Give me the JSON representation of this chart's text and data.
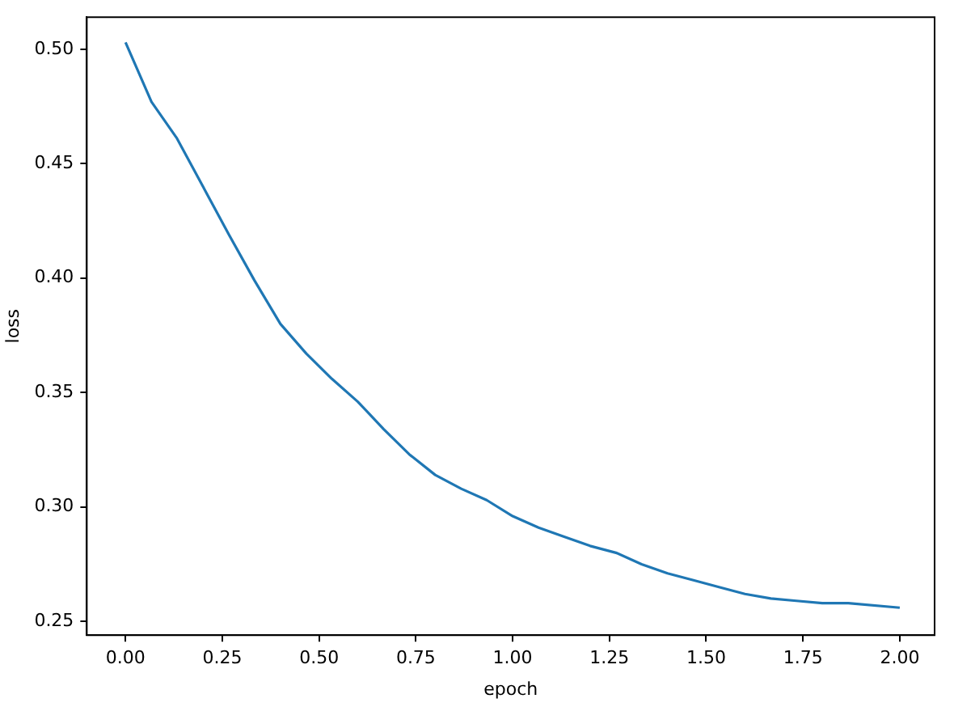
{
  "chart_data": {
    "type": "line",
    "xlabel": "epoch",
    "ylabel": "loss",
    "x": [
      0,
      0.067,
      0.133,
      0.2,
      0.267,
      0.333,
      0.4,
      0.467,
      0.533,
      0.6,
      0.667,
      0.733,
      0.8,
      0.867,
      0.933,
      1.0,
      1.067,
      1.133,
      1.2,
      1.267,
      1.333,
      1.4,
      1.467,
      1.533,
      1.6,
      1.667,
      1.733,
      1.8,
      1.867,
      2.0
    ],
    "series": [
      {
        "color": "#1f77b4",
        "values": [
          0.503,
          0.477,
          0.461,
          0.44,
          0.419,
          0.399,
          0.38,
          0.367,
          0.356,
          0.346,
          0.334,
          0.323,
          0.314,
          0.308,
          0.303,
          0.296,
          0.291,
          0.287,
          0.283,
          0.28,
          0.275,
          0.271,
          0.268,
          0.265,
          0.262,
          0.26,
          0.259,
          0.258,
          0.258,
          0.256
        ]
      }
    ],
    "xlim": [
      -0.1,
      2.09
    ],
    "xticks": [
      {
        "value": 0,
        "label": "0.00"
      },
      {
        "value": 0.25,
        "label": "0.25"
      },
      {
        "value": 0.5,
        "label": "0.50"
      },
      {
        "value": 0.75,
        "label": "0.75"
      },
      {
        "value": 1,
        "label": "1.00"
      },
      {
        "value": 1.25,
        "label": "1.25"
      },
      {
        "value": 1.5,
        "label": "1.50"
      },
      {
        "value": 1.75,
        "label": "1.75"
      },
      {
        "value": 2,
        "label": "2.00"
      }
    ],
    "ylim": [
      0.244,
      0.514
    ],
    "yticks": [
      {
        "value": 0.25,
        "label": "0.25"
      },
      {
        "value": 0.3,
        "label": "0.30"
      },
      {
        "value": 0.35,
        "label": "0.35"
      },
      {
        "value": 0.4,
        "label": "0.40"
      },
      {
        "value": 0.45,
        "label": "0.45"
      },
      {
        "value": 0.5,
        "label": "0.50"
      }
    ],
    "grid": false,
    "legend": false
  }
}
